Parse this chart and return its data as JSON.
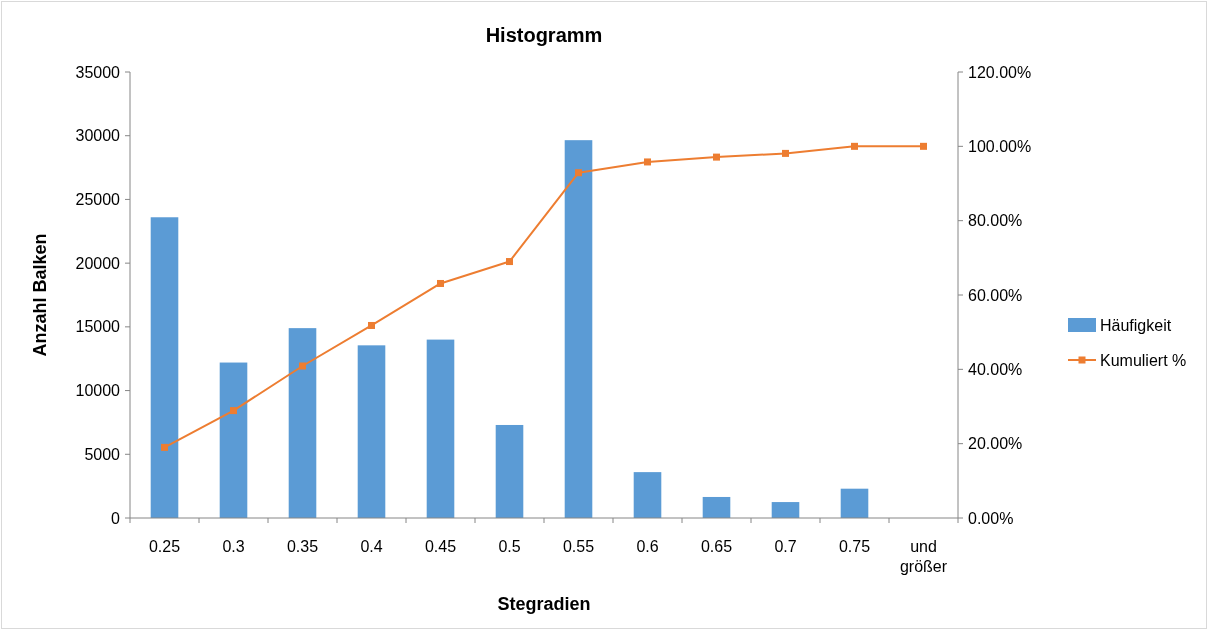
{
  "chart_data": {
    "type": "bar",
    "title": "Histogramm",
    "xlabel": "Stegradien",
    "ylabel": "Anzahl Balken",
    "categories": [
      "0.25",
      "0.3",
      "0.35",
      "0.4",
      "0.45",
      "0.5",
      "0.55",
      "0.6",
      "0.65",
      "0.7",
      "0.75",
      "und größer"
    ],
    "series": [
      {
        "name": "Häufigkeit",
        "color": "#5b9bd5",
        "values": [
          23600,
          12200,
          14900,
          13550,
          14000,
          7300,
          29650,
          3600,
          1650,
          1250,
          2300,
          0
        ]
      },
      {
        "name": "Kumuliert %",
        "type": "line",
        "axis": "y2",
        "color": "#ed7d31",
        "marker": "square",
        "values": [
          19.0,
          28.9,
          40.9,
          51.8,
          63.1,
          69.0,
          92.9,
          95.8,
          97.1,
          98.1,
          100,
          100
        ]
      }
    ],
    "ylim": [
      0,
      35000
    ],
    "yticks": [
      0,
      5000,
      10000,
      15000,
      20000,
      25000,
      30000,
      35000
    ],
    "y2lim": [
      0,
      120
    ],
    "y2ticks": [
      {
        "value": 0,
        "label": "0.00%"
      },
      {
        "value": 20,
        "label": "20.00%"
      },
      {
        "value": 40,
        "label": "40.00%"
      },
      {
        "value": 60,
        "label": "60.00%"
      },
      {
        "value": 80,
        "label": "80.00%"
      },
      {
        "value": 100,
        "label": "100.00%"
      },
      {
        "value": 120,
        "label": "120.00%"
      }
    ],
    "legend": "right",
    "grid": false
  }
}
